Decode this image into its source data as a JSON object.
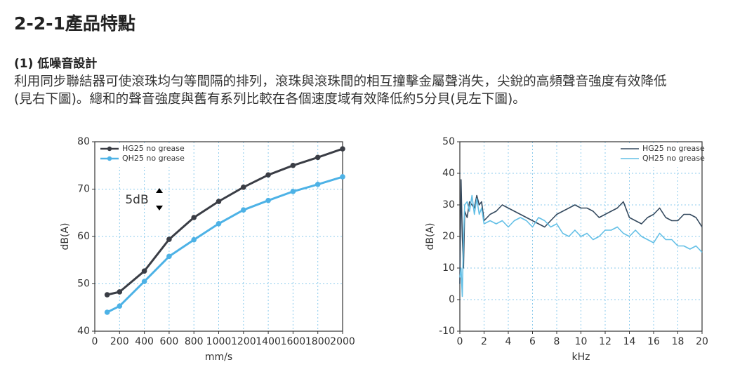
{
  "header": {
    "title": "2-2-1產品特點"
  },
  "section": {
    "heading": "(1) 低噪音設計",
    "lines": [
      "利用同步聯結器可使滾珠均勻等間隔的排列，滾珠與滾珠間的相互撞擊金屬聲消失，尖銳的高頻聲音強度有效降低",
      "(見右下圖)。總和的聲音強度與舊有系列比較在各個速度域有效降低約5分貝(見左下圖)。"
    ]
  },
  "chart_data": [
    {
      "type": "line",
      "xlabel": "mm/s",
      "ylabel": "dB(A)",
      "annotation": "5dB",
      "markers": true,
      "grid": true,
      "legend": "upper left",
      "x": [
        100,
        200,
        400,
        600,
        800,
        1000,
        1200,
        1400,
        1600,
        1800,
        2000
      ],
      "series": [
        {
          "name": "HG25 no grease",
          "color": "#3a3d45",
          "values": [
            47.7,
            48.3,
            52.7,
            59.4,
            64,
            67.4,
            70.4,
            73,
            75,
            76.7,
            78.5
          ]
        },
        {
          "name": "QH25 no grease",
          "color": "#4db2e6",
          "values": [
            44,
            45.3,
            50.5,
            55.8,
            59.3,
            62.7,
            65.6,
            67.6,
            69.5,
            71,
            72.6
          ]
        }
      ],
      "xlim": [
        0,
        2000
      ],
      "xticks": [
        0,
        200,
        400,
        600,
        800,
        1000,
        1200,
        1400,
        1600,
        1800,
        2000
      ],
      "ylim": [
        40,
        80
      ],
      "yticks": [
        40,
        50,
        60,
        70,
        80
      ]
    },
    {
      "type": "line",
      "xlabel": "kHz",
      "ylabel": "dB(A)",
      "markers": false,
      "grid": true,
      "legend": "upper right",
      "x": [
        0,
        0.1,
        0.2,
        0.3,
        0.4,
        0.6,
        0.8,
        1,
        1.2,
        1.4,
        1.6,
        1.8,
        2,
        2.5,
        3,
        3.5,
        4,
        4.5,
        5,
        5.5,
        6,
        6.5,
        7,
        7.5,
        8,
        8.5,
        9,
        9.5,
        10,
        10.5,
        11,
        11.5,
        12,
        12.5,
        13,
        13.5,
        14,
        14.5,
        15,
        15.5,
        16,
        16.5,
        17,
        17.5,
        18,
        18.5,
        19,
        19.5,
        20
      ],
      "series": [
        {
          "name": "HG25 no grease",
          "color": "#34495e",
          "values": [
            5,
            38,
            20,
            10,
            28,
            26,
            31,
            30,
            29,
            33,
            30,
            31,
            25,
            27,
            28,
            30,
            29,
            28,
            27,
            26,
            25,
            24,
            23,
            25,
            27,
            28,
            29,
            30,
            29,
            29,
            28,
            26,
            27,
            28,
            29,
            31,
            26,
            25,
            24,
            26,
            27,
            29,
            26,
            25,
            25,
            27,
            27,
            26,
            23
          ]
        },
        {
          "name": "QH25 no grease",
          "color": "#62bfe6",
          "values": [
            7,
            10,
            1,
            20,
            30,
            31,
            28,
            33,
            27,
            32,
            27,
            29,
            24,
            25,
            24,
            25,
            23,
            25,
            26,
            25,
            23,
            26,
            25,
            23,
            24,
            21,
            20,
            22,
            20,
            21,
            19,
            20,
            22,
            22,
            23,
            21,
            20,
            22,
            20,
            19,
            18,
            21,
            19,
            19,
            17,
            17,
            16,
            17,
            15
          ]
        }
      ],
      "xlim": [
        0,
        20
      ],
      "xticks": [
        0,
        2,
        4,
        6,
        8,
        10,
        12,
        14,
        16,
        18,
        20
      ],
      "ylim": [
        -10,
        50
      ],
      "yticks": [
        -10,
        0,
        10,
        20,
        30,
        40,
        50
      ]
    }
  ]
}
